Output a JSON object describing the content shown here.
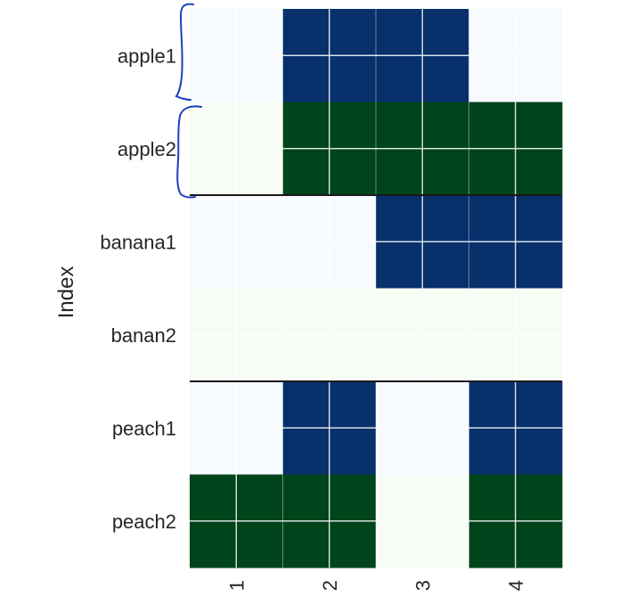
{
  "chart_data": {
    "type": "heatmap",
    "title": "",
    "xlabel": "",
    "ylabel": "Index",
    "x_tick_labels": [
      "1",
      "2",
      "3",
      "4"
    ],
    "y_tick_labels": [
      "apple1",
      "apple2",
      "banana1",
      "banan2",
      "peach1",
      "peach2"
    ],
    "values": [
      [
        0,
        1,
        1,
        0
      ],
      [
        0,
        1,
        1,
        1
      ],
      [
        0,
        0,
        1,
        1
      ],
      [
        0,
        0,
        0,
        0
      ],
      [
        0,
        1,
        0,
        1
      ],
      [
        1,
        1,
        0,
        1
      ]
    ],
    "row_colormaps": [
      "Blues",
      "Greens",
      "Blues",
      "Greens",
      "Blues",
      "Greens"
    ],
    "colors": {
      "Blues": {
        "low": "#f7fbff",
        "high": "#08306b"
      },
      "Greens": {
        "low": "#f7fcf5",
        "high": "#00441b"
      },
      "grid": "#ffffff",
      "group_separator": "#1a1a1a",
      "annotation": "#1a3fbf"
    },
    "group_separators_after_rows": [
      2,
      4
    ],
    "annotations": [
      "brace-left-apple1",
      "brace-left-apple2"
    ]
  }
}
